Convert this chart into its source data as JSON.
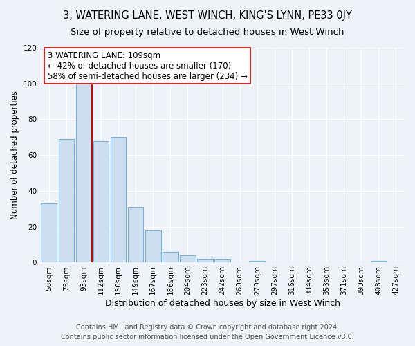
{
  "title": "3, WATERING LANE, WEST WINCH, KING'S LYNN, PE33 0JY",
  "subtitle": "Size of property relative to detached houses in West Winch",
  "xlabel": "Distribution of detached houses by size in West Winch",
  "ylabel": "Number of detached properties",
  "bar_labels": [
    "56sqm",
    "75sqm",
    "93sqm",
    "112sqm",
    "130sqm",
    "149sqm",
    "167sqm",
    "186sqm",
    "204sqm",
    "223sqm",
    "242sqm",
    "260sqm",
    "279sqm",
    "297sqm",
    "316sqm",
    "334sqm",
    "353sqm",
    "371sqm",
    "390sqm",
    "408sqm",
    "427sqm"
  ],
  "bar_values": [
    33,
    69,
    100,
    68,
    70,
    31,
    18,
    6,
    4,
    2,
    2,
    0,
    1,
    0,
    0,
    0,
    0,
    0,
    0,
    1,
    0
  ],
  "bar_color": "#ccdff0",
  "bar_edge_color": "#7ab4d8",
  "vline_x_idx": 2.5,
  "vline_color": "#cc0000",
  "annotation_line1": "3 WATERING LANE: 109sqm",
  "annotation_line2": "← 42% of detached houses are smaller (170)",
  "annotation_line3": "58% of semi-detached houses are larger (234) →",
  "annotation_box_color": "#ffffff",
  "annotation_box_edge": "#cc0000",
  "ylim": [
    0,
    120
  ],
  "yticks": [
    0,
    20,
    40,
    60,
    80,
    100,
    120
  ],
  "footer_line1": "Contains HM Land Registry data © Crown copyright and database right 2024.",
  "footer_line2": "Contains public sector information licensed under the Open Government Licence v3.0.",
  "bg_color": "#eef2f9",
  "grid_color": "#ffffff",
  "title_fontsize": 10.5,
  "subtitle_fontsize": 9.5,
  "xlabel_fontsize": 9,
  "ylabel_fontsize": 8.5,
  "tick_fontsize": 7.5,
  "annotation_fontsize": 8.5,
  "footer_fontsize": 7
}
